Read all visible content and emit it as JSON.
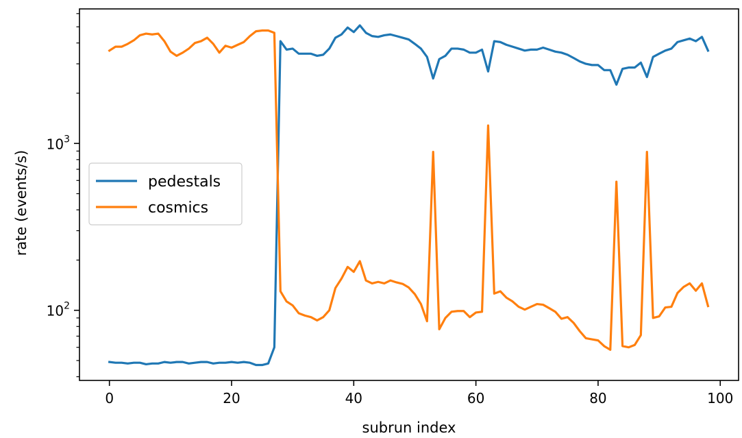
{
  "chart_data": {
    "type": "line",
    "xlabel": "subrun index",
    "ylabel": "rate (events/s)",
    "yscale": "log",
    "xlim": [
      -4.9,
      103
    ],
    "ylim": [
      38,
      6400
    ],
    "grid": false,
    "legend_position": "center-left",
    "x_ticks": [
      {
        "value": 0,
        "label": "0"
      },
      {
        "value": 20,
        "label": "20"
      },
      {
        "value": 40,
        "label": "40"
      },
      {
        "value": 60,
        "label": "60"
      },
      {
        "value": 80,
        "label": "80"
      },
      {
        "value": 100,
        "label": "100"
      }
    ],
    "y_major_ticks": [
      {
        "value": 100,
        "base": "10",
        "exp": "2"
      },
      {
        "value": 1000,
        "base": "10",
        "exp": "3"
      }
    ],
    "y_minor_ticks": [
      40,
      50,
      60,
      70,
      80,
      90,
      200,
      300,
      400,
      500,
      600,
      700,
      800,
      900,
      2000,
      3000,
      4000,
      5000,
      6000
    ],
    "series": [
      {
        "name": "pedestals",
        "color": "#1f77b4",
        "values": [
          49,
          48.5,
          48.5,
          48,
          48.5,
          48.5,
          47.5,
          48,
          48,
          49,
          48.5,
          49,
          49,
          48,
          48.5,
          49,
          49,
          48,
          48.5,
          48.5,
          49,
          48.5,
          49,
          48.5,
          47,
          47,
          48,
          60,
          4100,
          3650,
          3700,
          3450,
          3450,
          3450,
          3350,
          3400,
          3700,
          4300,
          4500,
          4950,
          4650,
          5100,
          4600,
          4400,
          4350,
          4450,
          4500,
          4400,
          4300,
          4200,
          3950,
          3700,
          3300,
          2450,
          3200,
          3350,
          3700,
          3700,
          3650,
          3500,
          3500,
          3650,
          2700,
          4100,
          4050,
          3900,
          3800,
          3700,
          3600,
          3650,
          3650,
          3750,
          3650,
          3550,
          3500,
          3400,
          3250,
          3100,
          3000,
          2950,
          2950,
          2750,
          2750,
          2250,
          2800,
          2850,
          2850,
          3050,
          2500,
          3300,
          3450,
          3600,
          3700,
          4050,
          4150,
          4250,
          4100,
          4350,
          3600
        ]
      },
      {
        "name": "cosmics",
        "color": "#ff7f0e",
        "values": [
          3600,
          3800,
          3800,
          3950,
          4150,
          4450,
          4550,
          4500,
          4550,
          4100,
          3550,
          3350,
          3500,
          3700,
          4000,
          4100,
          4300,
          3950,
          3500,
          3850,
          3750,
          3900,
          4050,
          4400,
          4700,
          4750,
          4750,
          4600,
          130,
          113,
          107,
          96,
          93,
          91,
          87,
          91,
          100,
          136,
          155,
          182,
          170,
          197,
          151,
          145,
          148,
          145,
          151,
          147,
          144,
          137,
          125,
          109,
          86,
          890,
          77,
          90,
          98,
          99,
          99,
          91,
          97,
          98,
          1280,
          126,
          130,
          119,
          113,
          105,
          101,
          105,
          109,
          108,
          103,
          98,
          89,
          91,
          84,
          75,
          68,
          67,
          66,
          61,
          58,
          590,
          61,
          60,
          62,
          71,
          890,
          90,
          92,
          104,
          105,
          127,
          138,
          145,
          131,
          145,
          106
        ]
      }
    ]
  }
}
